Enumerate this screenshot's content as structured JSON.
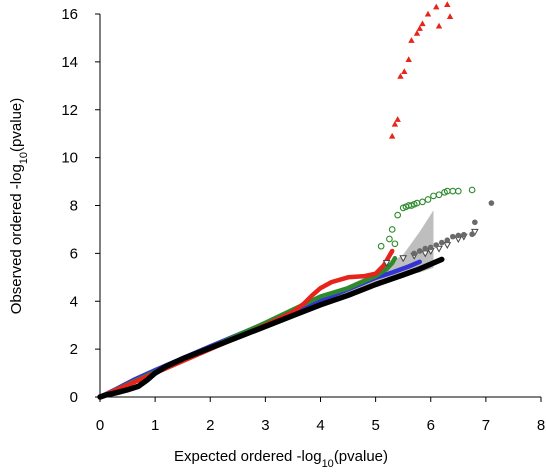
{
  "chart_data": {
    "type": "scatter",
    "title": "",
    "xlabel": {
      "main": "Expected ordered -log",
      "sub": "10",
      "tail": "(pvalue)"
    },
    "ylabel": {
      "main": "Observed ordered -log",
      "sub": "10",
      "tail": "(pvalue)"
    },
    "xlim": [
      0,
      8
    ],
    "ylim": [
      0,
      16
    ],
    "xticks": [
      "0",
      "1",
      "2",
      "3",
      "4",
      "5",
      "6",
      "7",
      "8"
    ],
    "yticks": [
      "0",
      "2",
      "4",
      "6",
      "8",
      "10",
      "12",
      "14",
      "16"
    ],
    "grid": false,
    "legend": "none",
    "confidence_band": {
      "color": "#b3b3b3",
      "upper": [
        [
          0,
          0
        ],
        [
          1,
          1.02
        ],
        [
          2,
          2.04
        ],
        [
          3,
          3.06
        ],
        [
          4,
          4.12
        ],
        [
          5,
          5.2
        ],
        [
          5.5,
          5.95
        ],
        [
          5.8,
          6.9
        ],
        [
          6.05,
          7.8
        ]
      ],
      "lower": [
        [
          6.05,
          5.4
        ],
        [
          5.8,
          5.2
        ],
        [
          5.5,
          5.1
        ],
        [
          5,
          4.8
        ],
        [
          4,
          3.9
        ],
        [
          3,
          2.94
        ],
        [
          2,
          1.96
        ],
        [
          1,
          0.98
        ],
        [
          0,
          0
        ]
      ]
    },
    "series": [
      {
        "color": "#e8231c",
        "marker": "triangle-up",
        "points": [
          [
            5.3,
            10.9
          ],
          [
            5.35,
            11.4
          ],
          [
            5.4,
            11.6
          ],
          [
            5.45,
            13.4
          ],
          [
            5.52,
            13.6
          ],
          [
            5.6,
            14.1
          ],
          [
            5.65,
            14.9
          ],
          [
            5.75,
            15.2
          ],
          [
            5.8,
            15.4
          ],
          [
            5.85,
            15.6
          ],
          [
            5.95,
            16.0
          ],
          [
            6.1,
            16.3
          ],
          [
            6.3,
            16.4
          ],
          [
            6.35,
            15.9
          ],
          [
            6.15,
            15.5
          ]
        ]
      },
      {
        "color": "#2d8a2d",
        "marker": "circle-open",
        "points": [
          [
            5.1,
            6.3
          ],
          [
            5.25,
            6.6
          ],
          [
            5.3,
            7.0
          ],
          [
            5.4,
            7.6
          ],
          [
            5.5,
            7.9
          ],
          [
            5.55,
            7.95
          ],
          [
            5.6,
            8.0
          ],
          [
            5.65,
            8.0
          ],
          [
            5.7,
            8.05
          ],
          [
            5.75,
            8.1
          ],
          [
            5.85,
            8.15
          ],
          [
            5.95,
            8.25
          ],
          [
            6.05,
            8.4
          ],
          [
            6.15,
            8.45
          ],
          [
            6.25,
            8.55
          ],
          [
            6.3,
            8.6
          ],
          [
            6.4,
            8.6
          ],
          [
            6.5,
            8.6
          ],
          [
            6.75,
            8.65
          ],
          [
            5.35,
            6.4
          ]
        ]
      },
      {
        "color": "#6a6a6a",
        "marker": "circle",
        "points": [
          [
            5.7,
            6.0
          ],
          [
            5.8,
            6.1
          ],
          [
            5.9,
            6.2
          ],
          [
            6.0,
            6.25
          ],
          [
            6.1,
            6.35
          ],
          [
            6.2,
            6.45
          ],
          [
            6.3,
            6.55
          ],
          [
            6.4,
            6.7
          ],
          [
            6.5,
            6.75
          ],
          [
            6.6,
            6.78
          ],
          [
            6.75,
            6.8
          ],
          [
            6.8,
            7.3
          ],
          [
            7.1,
            8.1
          ]
        ]
      },
      {
        "color": "#444444",
        "marker": "triangle-down-open",
        "points": [
          [
            5.2,
            5.6
          ],
          [
            5.5,
            5.8
          ],
          [
            5.7,
            5.9
          ],
          [
            5.9,
            6.0
          ],
          [
            6.0,
            6.1
          ],
          [
            6.15,
            6.2
          ],
          [
            6.3,
            6.35
          ],
          [
            6.5,
            6.6
          ],
          [
            6.6,
            6.7
          ],
          [
            6.8,
            6.9
          ]
        ]
      },
      {
        "color": "#3434d6",
        "marker": "line",
        "points": [
          [
            0,
            0
          ],
          [
            0.3,
            0.34
          ],
          [
            0.6,
            0.7
          ],
          [
            1.0,
            1.12
          ],
          [
            1.5,
            1.62
          ],
          [
            2.0,
            2.12
          ],
          [
            2.5,
            2.6
          ],
          [
            3.0,
            3.08
          ],
          [
            3.5,
            3.56
          ],
          [
            4.0,
            4.04
          ],
          [
            4.5,
            4.5
          ],
          [
            5.0,
            4.98
          ],
          [
            5.3,
            5.2
          ],
          [
            5.6,
            5.45
          ],
          [
            5.8,
            5.65
          ]
        ]
      },
      {
        "color": "#2d8a2d",
        "marker": "line",
        "points": [
          [
            0,
            0
          ],
          [
            1.0,
            1.05
          ],
          [
            2.0,
            2.06
          ],
          [
            3.0,
            3.1
          ],
          [
            3.5,
            3.65
          ],
          [
            4.0,
            4.2
          ],
          [
            4.5,
            4.55
          ],
          [
            5.0,
            5.05
          ],
          [
            5.2,
            5.35
          ],
          [
            5.3,
            5.6
          ],
          [
            5.35,
            5.8
          ]
        ]
      },
      {
        "color": "#e8231c",
        "marker": "line",
        "points": [
          [
            0,
            0
          ],
          [
            1.0,
            1.0
          ],
          [
            2.0,
            2.0
          ],
          [
            3.0,
            3.0
          ],
          [
            3.5,
            3.55
          ],
          [
            3.7,
            3.9
          ],
          [
            3.85,
            4.25
          ],
          [
            4.0,
            4.55
          ],
          [
            4.2,
            4.8
          ],
          [
            4.5,
            5.0
          ],
          [
            4.8,
            5.05
          ],
          [
            5.0,
            5.15
          ],
          [
            5.15,
            5.5
          ],
          [
            5.25,
            5.9
          ],
          [
            5.3,
            6.1
          ]
        ]
      },
      {
        "color": "#000000",
        "marker": "line",
        "points": [
          [
            0,
            0
          ],
          [
            0.1,
            0.08
          ],
          [
            0.3,
            0.18
          ],
          [
            0.5,
            0.3
          ],
          [
            0.7,
            0.45
          ],
          [
            0.85,
            0.7
          ],
          [
            1.0,
            1.0
          ],
          [
            1.2,
            1.28
          ],
          [
            1.5,
            1.6
          ],
          [
            2.0,
            2.05
          ],
          [
            2.5,
            2.5
          ],
          [
            3.0,
            2.95
          ],
          [
            3.5,
            3.4
          ],
          [
            4.0,
            3.85
          ],
          [
            4.5,
            4.25
          ],
          [
            5.0,
            4.7
          ],
          [
            5.5,
            5.1
          ],
          [
            5.8,
            5.35
          ],
          [
            6.0,
            5.55
          ],
          [
            6.2,
            5.75
          ]
        ]
      }
    ]
  }
}
